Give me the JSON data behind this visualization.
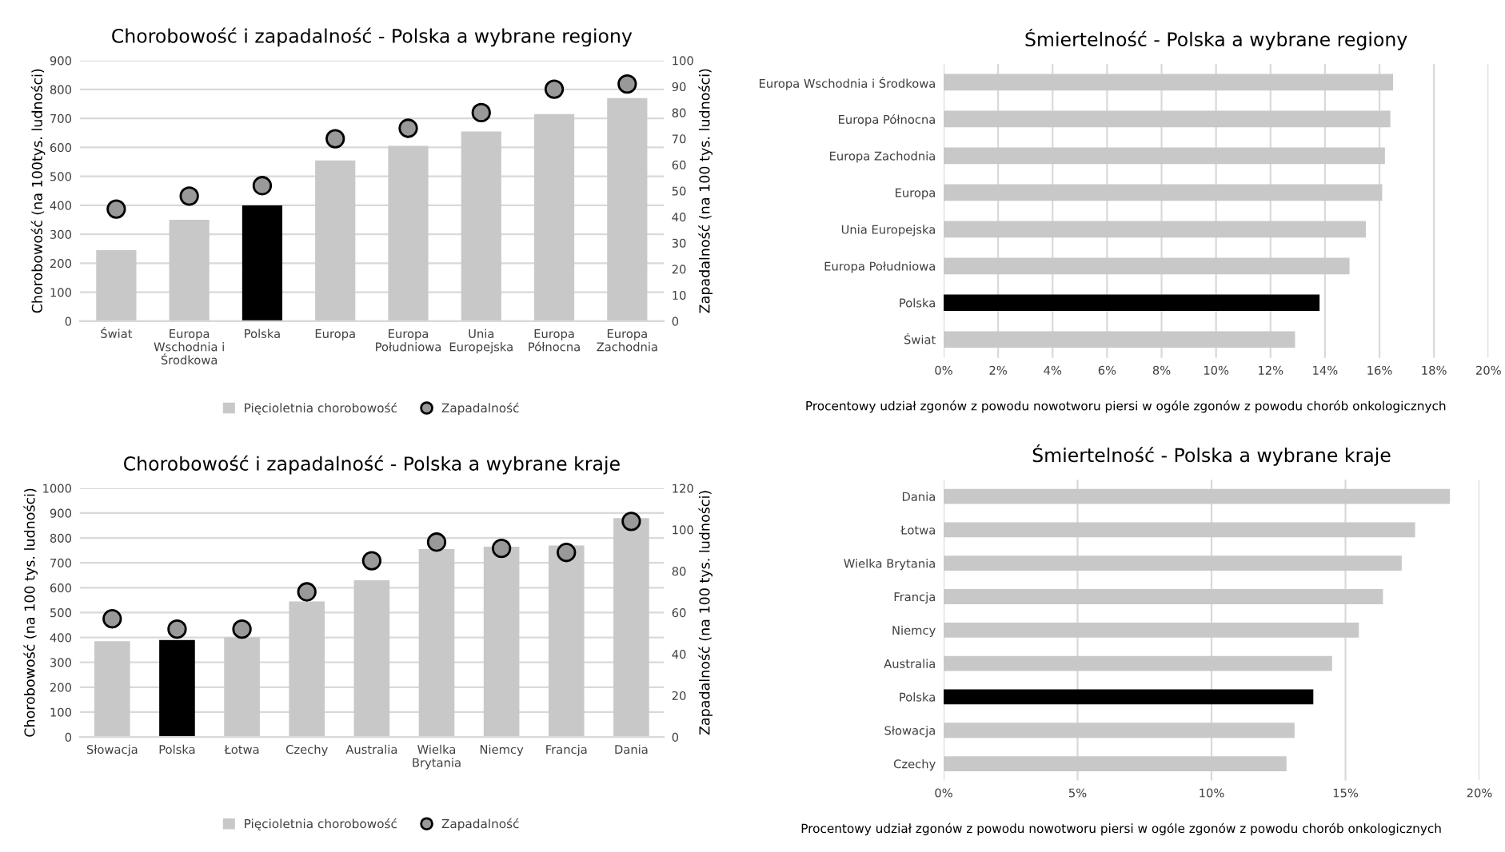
{
  "chart_data": [
    {
      "type": "bar",
      "title": "Chorobowość i zapadalność - Polska a wybrane regiony",
      "ylabel": "Chorobowość (na 100tys. ludności)",
      "y2label": "Zapadalność (na 100 tys. ludności)",
      "categories": [
        "Świat",
        "Europa\nWschodnia i\nŚrodkowa",
        "Polska",
        "Europa",
        "Europa\nPołudniowa",
        "Unia\nEuropejska",
        "Europa\nPółnocna",
        "Europa\nZachodnia"
      ],
      "series": [
        {
          "name": "Pięcioletnia chorobowość",
          "type": "bar",
          "color": "#c8c8c8",
          "colors": [
            "#c8c8c8",
            "#c8c8c8",
            "#000000",
            "#c8c8c8",
            "#c8c8c8",
            "#c8c8c8",
            "#c8c8c8",
            "#c8c8c8"
          ],
          "values": [
            245,
            350,
            400,
            555,
            605,
            655,
            715,
            770
          ]
        },
        {
          "name": "Zapadalność",
          "type": "scatter",
          "color": "#999999",
          "axis": "y2",
          "values": [
            43,
            48,
            52,
            70,
            74,
            80,
            89,
            91
          ]
        }
      ],
      "ylim": [
        0,
        900
      ],
      "yticks": [
        0,
        100,
        200,
        300,
        400,
        500,
        600,
        700,
        800,
        900
      ],
      "y2lim": [
        0,
        100
      ],
      "y2ticks": [
        0,
        10,
        20,
        30,
        40,
        50,
        60,
        70,
        80,
        90,
        100
      ],
      "grid": "y",
      "legend": "bottom",
      "marker": "circle"
    },
    {
      "type": "bar",
      "orientation": "horizontal",
      "title": "Śmiertelność - Polska a wybrane regiony",
      "xlabel": "Procentowy udział zgonów z powodu nowotworu piersi w ogóle zgonów z powodu chorób onkologicznych",
      "categories": [
        "Europa Wschodnia i Środkowa",
        "Europa Północna",
        "Europa Zachodnia",
        "Europa",
        "Unia Europejska",
        "Europa Południowa",
        "Polska",
        "Świat"
      ],
      "values": [
        16.5,
        16.4,
        16.2,
        16.1,
        15.5,
        14.9,
        13.8,
        12.9
      ],
      "colors": [
        "#c8c8c8",
        "#c8c8c8",
        "#c8c8c8",
        "#c8c8c8",
        "#c8c8c8",
        "#c8c8c8",
        "#000000",
        "#c8c8c8"
      ],
      "xlim": [
        0,
        20
      ],
      "xticks": [
        {
          "value": 0,
          "label": "0%"
        },
        {
          "value": 2,
          "label": "2%"
        },
        {
          "value": 4,
          "label": "4%"
        },
        {
          "value": 6,
          "label": "6%"
        },
        {
          "value": 8,
          "label": "8%"
        },
        {
          "value": 10,
          "label": "10%"
        },
        {
          "value": 12,
          "label": "12%"
        },
        {
          "value": 14,
          "label": "14%"
        },
        {
          "value": 16,
          "label": "16%"
        },
        {
          "value": 18,
          "label": "18%"
        },
        {
          "value": 20,
          "label": "20%"
        }
      ],
      "grid": "x"
    },
    {
      "type": "bar",
      "title": "Chorobowość i zapadalność - Polska a wybrane kraje",
      "ylabel": "Chorobowość (na 100 tys. ludności)",
      "y2label": "Zapadalność (na 100 tys. ludności)",
      "categories": [
        "Słowacja",
        "Polska",
        "Łotwa",
        "Czechy",
        "Australia",
        "Wielka\nBrytania",
        "Niemcy",
        "Francja",
        "Dania"
      ],
      "series": [
        {
          "name": "Pięcioletnia chorobowość",
          "type": "bar",
          "color": "#c8c8c8",
          "colors": [
            "#c8c8c8",
            "#000000",
            "#c8c8c8",
            "#c8c8c8",
            "#c8c8c8",
            "#c8c8c8",
            "#c8c8c8",
            "#c8c8c8",
            "#c8c8c8"
          ],
          "values": [
            385,
            390,
            400,
            545,
            630,
            755,
            765,
            770,
            880
          ]
        },
        {
          "name": "Zapadalność",
          "type": "scatter",
          "color": "#999999",
          "axis": "y2",
          "values": [
            57,
            52,
            52,
            70,
            85,
            94,
            91,
            89,
            104
          ]
        }
      ],
      "ylim": [
        0,
        1000
      ],
      "yticks": [
        0,
        100,
        200,
        300,
        400,
        500,
        600,
        700,
        800,
        900,
        1000
      ],
      "y2lim": [
        0,
        120
      ],
      "y2ticks": [
        0,
        20,
        40,
        60,
        80,
        100,
        120
      ],
      "grid": "y",
      "legend": "bottom",
      "marker": "circle"
    },
    {
      "type": "bar",
      "orientation": "horizontal",
      "title": "Śmiertelność - Polska a wybrane kraje",
      "xlabel": "Procentowy udział zgonów z powodu nowotworu piersi w ogóle zgonów z powodu chorób onkologicznych",
      "categories": [
        "Dania",
        "Łotwa",
        "Wielka Brytania",
        "Francja",
        "Niemcy",
        "Australia",
        "Polska",
        "Słowacja",
        "Czechy"
      ],
      "values": [
        18.9,
        17.6,
        17.1,
        16.4,
        15.5,
        14.5,
        13.8,
        13.1,
        12.8
      ],
      "colors": [
        "#c8c8c8",
        "#c8c8c8",
        "#c8c8c8",
        "#c8c8c8",
        "#c8c8c8",
        "#c8c8c8",
        "#000000",
        "#c8c8c8",
        "#c8c8c8"
      ],
      "xlim": [
        0,
        20
      ],
      "xticks": [
        {
          "value": 0,
          "label": "0%"
        },
        {
          "value": 5,
          "label": "5%"
        },
        {
          "value": 10,
          "label": "10%"
        },
        {
          "value": 15,
          "label": "15%"
        },
        {
          "value": 20,
          "label": "20%"
        }
      ],
      "grid": "x"
    }
  ]
}
